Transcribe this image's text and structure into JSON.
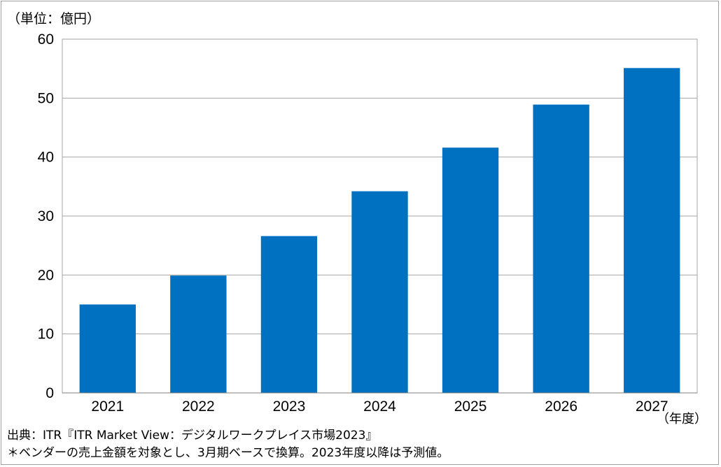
{
  "chart_data": {
    "type": "bar",
    "unit_label": "（単位：億円）",
    "x_unit_label": "（年度）",
    "categories": [
      "2021",
      "2022",
      "2023",
      "2024",
      "2025",
      "2026",
      "2027"
    ],
    "values": [
      15,
      19.9,
      26.6,
      34.2,
      41.6,
      48.9,
      55.1
    ],
    "ylim": [
      0,
      60
    ],
    "yticks": [
      0,
      10,
      20,
      30,
      40,
      50,
      60
    ],
    "grid": true,
    "bar_color": "#0070C0"
  },
  "footer": {
    "source": "出典：ITR『ITR Market View：デジタルワークプレイス市場2023』",
    "note": "＊ベンダーの売上金額を対象とし、3月期ベースで換算。2023年度以降は予測値。"
  }
}
